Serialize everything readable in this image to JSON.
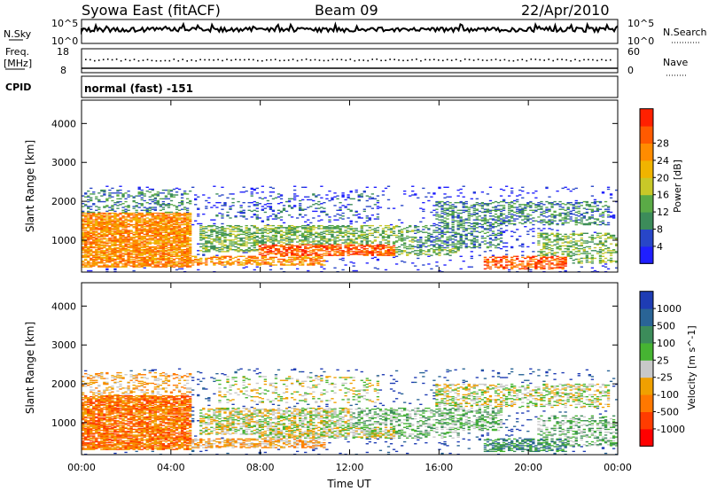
{
  "header": {
    "station": "Syowa East (fitACF)",
    "beam": "Beam 09",
    "date": "22/Apr/2010"
  },
  "noise_panel": {
    "left_label": "N.Sky",
    "right_label": "N.Search",
    "left_ticks": [
      "10^5",
      "10^0"
    ],
    "right_ticks": [
      "10^5",
      "10^0"
    ]
  },
  "freq_panel": {
    "left_label_1": "Freq.",
    "left_label_2": "[MHz]",
    "left_ticks": [
      "18",
      "8"
    ],
    "right_label": "Nave",
    "right_ticks": [
      "60",
      "0"
    ]
  },
  "cpid": {
    "label": "CPID",
    "value": "normal (fast) -151"
  },
  "chart_data": [
    {
      "type": "heatmap",
      "title": "",
      "ylabel": "Slant Range [km]",
      "xlabel": "",
      "ylim": [
        180,
        4600
      ],
      "y_ticks": [
        "1000",
        "2000",
        "3000",
        "4000"
      ],
      "x_ticks": [
        "00:00",
        "04:00",
        "08:00",
        "12:00",
        "16:00",
        "20:00",
        "00:00"
      ],
      "colorbar": {
        "label": "Power [dB]",
        "ticks": [
          "4",
          "8",
          "12",
          "16",
          "20",
          "24",
          "28"
        ],
        "colors": [
          "#1f1fff",
          "#2846c8",
          "#3c8c5a",
          "#5aaa46",
          "#c8c828",
          "#f0b400",
          "#ff8c00",
          "#ff5a00",
          "#ff2000"
        ]
      }
    },
    {
      "type": "heatmap",
      "title": "",
      "ylabel": "Slant Range [km]",
      "xlabel": "Time UT",
      "ylim": [
        180,
        4600
      ],
      "y_ticks": [
        "1000",
        "2000",
        "3000",
        "4000"
      ],
      "x_ticks": [
        "00:00",
        "04:00",
        "08:00",
        "12:00",
        "16:00",
        "20:00",
        "00:00"
      ],
      "colorbar": {
        "label": "Velocity [m s^-1]",
        "ticks": [
          "1000",
          "500",
          "100",
          "25",
          "-25",
          "-100",
          "-500",
          "-1000"
        ],
        "colors": [
          "#1e3cb4",
          "#2a6496",
          "#3c8c5a",
          "#46b432",
          "#c8c8c8",
          "#f0a000",
          "#ff7800",
          "#ff3c00",
          "#ff0000"
        ]
      }
    }
  ]
}
